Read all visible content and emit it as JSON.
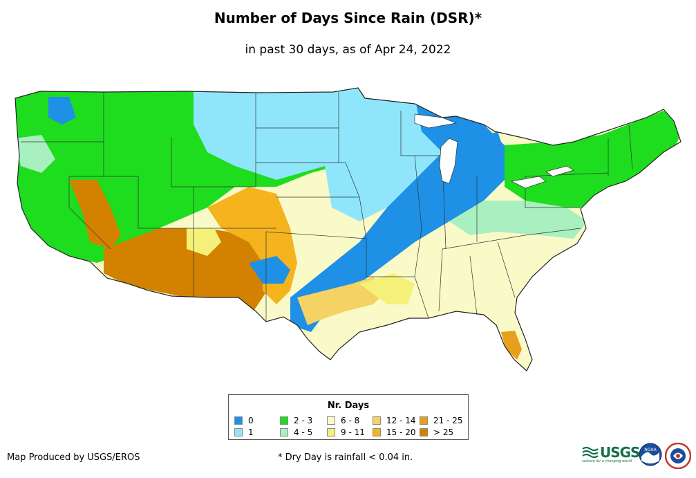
{
  "title": "Number of Days Since Rain (DSR)*",
  "subtitle": "in past 30 days, as of Apr 24, 2022",
  "legend": {
    "title": "Nr. Days",
    "items": [
      {
        "label": "0",
        "color": "#1e90e6"
      },
      {
        "label": "1",
        "color": "#8fe6fa"
      },
      {
        "label": "2 - 3",
        "color": "#1edc1e"
      },
      {
        "label": "4 - 5",
        "color": "#a8f0c0"
      },
      {
        "label": "6 - 8",
        "color": "#fafac8"
      },
      {
        "label": "9 - 11",
        "color": "#f5f07a"
      },
      {
        "label": "12 - 14",
        "color": "#f5d264"
      },
      {
        "label": "15 - 20",
        "color": "#f5b41e"
      },
      {
        "label": "21 - 25",
        "color": "#e6a01e"
      },
      {
        "label": "> 25",
        "color": "#d28200"
      }
    ]
  },
  "footer": {
    "producer": "Map Produced by USGS/EROS",
    "note": "* Dry Day is rainfall < 0.04 in."
  },
  "logos": {
    "usgs_text": "USGS",
    "usgs_tagline": "science for a changing world",
    "noaa_text": "NOAA"
  }
}
